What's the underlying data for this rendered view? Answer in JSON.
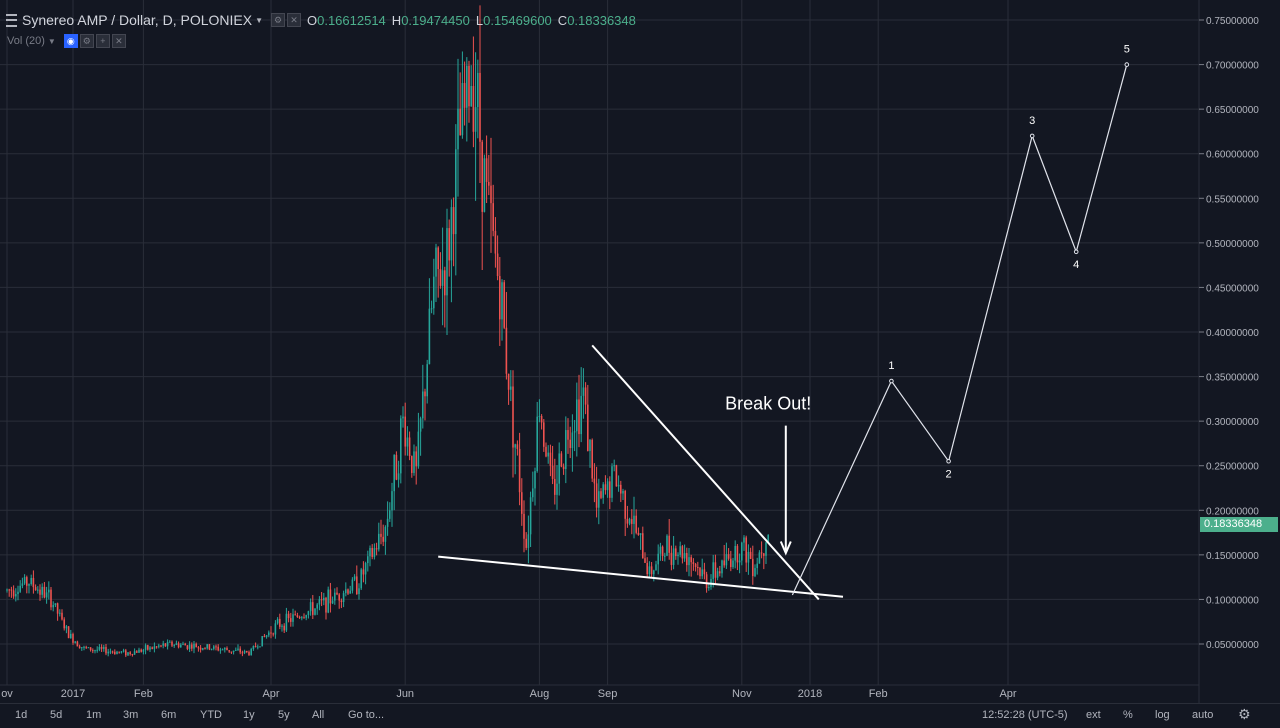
{
  "legend": {
    "title": "Synereo AMP / Dollar, D, POLONIEX",
    "o_label": "O",
    "o_value": "0.16612514",
    "h_label": "H",
    "h_value": "0.19474450",
    "l_label": "L",
    "l_value": "0.15469600",
    "c_label": "C",
    "c_value": "0.18336348"
  },
  "volume_indicator": {
    "label": "Vol (20)"
  },
  "chart_data": {
    "type": "candlestick",
    "symbol": "Synereo AMP / Dollar",
    "interval": "D",
    "exchange": "POLONIEX",
    "y_ticks": [
      "0.75000000",
      "0.70000000",
      "0.65000000",
      "0.60000000",
      "0.55000000",
      "0.50000000",
      "0.45000000",
      "0.40000000",
      "0.35000000",
      "0.30000000",
      "0.25000000",
      "0.20000000",
      "0.15000000",
      "0.10000000",
      "0.05000000"
    ],
    "y_tick_values": [
      0.75,
      0.7,
      0.65,
      0.6,
      0.55,
      0.5,
      0.45,
      0.4,
      0.35,
      0.3,
      0.25,
      0.2,
      0.15,
      0.1,
      0.05
    ],
    "ylim": [
      0.0,
      0.77
    ],
    "x_ticks": [
      "ov",
      "2017",
      "Feb",
      "Apr",
      "Jun",
      "Aug",
      "Sep",
      "Nov",
      "2018",
      "Feb",
      "Apr"
    ],
    "x_tick_days": [
      0,
      30,
      62,
      120,
      181,
      242,
      273,
      334,
      365,
      396,
      455
    ],
    "grid": true,
    "current_price": "0.18336348",
    "price_path": [
      [
        0,
        0.11
      ],
      [
        10,
        0.12
      ],
      [
        20,
        0.1
      ],
      [
        28,
        0.06
      ],
      [
        35,
        0.045
      ],
      [
        55,
        0.04
      ],
      [
        75,
        0.05
      ],
      [
        95,
        0.045
      ],
      [
        110,
        0.04
      ],
      [
        122,
        0.07
      ],
      [
        140,
        0.09
      ],
      [
        160,
        0.12
      ],
      [
        172,
        0.18
      ],
      [
        180,
        0.3
      ],
      [
        186,
        0.24
      ],
      [
        194,
        0.45
      ],
      [
        200,
        0.48
      ],
      [
        206,
        0.62
      ],
      [
        212,
        0.7
      ],
      [
        218,
        0.55
      ],
      [
        224,
        0.45
      ],
      [
        230,
        0.3
      ],
      [
        236,
        0.16
      ],
      [
        242,
        0.32
      ],
      [
        248,
        0.22
      ],
      [
        256,
        0.3
      ],
      [
        262,
        0.33
      ],
      [
        268,
        0.2
      ],
      [
        276,
        0.24
      ],
      [
        284,
        0.19
      ],
      [
        292,
        0.13
      ],
      [
        300,
        0.16
      ],
      [
        310,
        0.15
      ],
      [
        318,
        0.12
      ],
      [
        326,
        0.14
      ],
      [
        334,
        0.16
      ],
      [
        340,
        0.14
      ],
      [
        346,
        0.18
      ]
    ],
    "annotations": {
      "break_out_text": "Break Out!",
      "wave_labels": [
        "1",
        "2",
        "3",
        "4",
        "5"
      ],
      "wave_points": [
        [
          0.105,
          0.1
        ],
        [
          0.345,
          0.385
        ],
        [
          0.255,
          0.29
        ],
        [
          0.62,
          0.62
        ],
        [
          0.49,
          0.49
        ],
        [
          0.7,
          0.7
        ]
      ],
      "resistance_line": [
        [
          0.385,
          0.385
        ],
        [
          0.1,
          0.1
        ]
      ],
      "support_line": [
        [
          0.148,
          0.148
        ],
        [
          0.103,
          0.103
        ]
      ]
    }
  },
  "bottom_bar": {
    "timeframes": [
      "1d",
      "5d",
      "1m",
      "3m",
      "6m",
      "YTD",
      "1y",
      "5y",
      "All"
    ],
    "goto_label": "Go to...",
    "clock": "12:52:28 (UTC-5)",
    "ext_label": "ext",
    "percent_label": "%",
    "log_label": "log",
    "auto_label": "auto"
  },
  "colors": {
    "background": "#131722",
    "grid": "#2a2e39",
    "up": "#26a69a",
    "down": "#ef5350",
    "annotation": "#ffffff",
    "price_tag": "#4caf8c"
  }
}
